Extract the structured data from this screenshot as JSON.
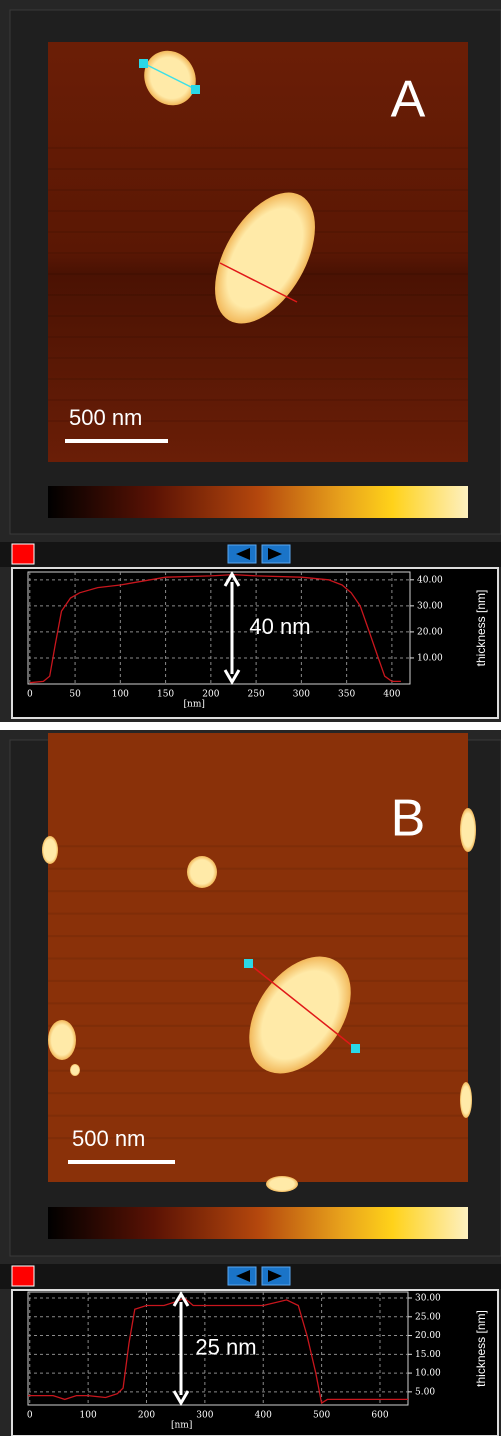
{
  "panels": [
    {
      "label": "A",
      "scale_bar": "500 nm"
    },
    {
      "label": "B",
      "scale_bar": "500 nm"
    }
  ],
  "chart_data": [
    {
      "type": "line",
      "color": "#c8161d",
      "xlabel": "[nm]",
      "ylabel": "thickness [nm]",
      "annotation": "40 nm",
      "x": [
        0,
        15,
        22,
        28,
        35,
        45,
        55,
        75,
        100,
        150,
        200,
        225,
        250,
        300,
        330,
        345,
        355,
        365,
        375,
        385,
        392,
        400,
        410
      ],
      "values": [
        0.5,
        1,
        3,
        15,
        28,
        33,
        35,
        37,
        38,
        41,
        41.5,
        42,
        41.5,
        41,
        40,
        38,
        35,
        30,
        20,
        10,
        3,
        1,
        1
      ],
      "xlim": [
        -2,
        420
      ],
      "ylim": [
        0,
        43
      ],
      "xticks": [
        0,
        50,
        100,
        150,
        200,
        250,
        300,
        350,
        400
      ],
      "yticks": [
        {
          "value": 10,
          "label": "10.00"
        },
        {
          "value": 20,
          "label": "20.00"
        },
        {
          "value": 30,
          "label": "30.00"
        },
        {
          "value": 40,
          "label": "40.00"
        }
      ],
      "grid": true
    },
    {
      "type": "line",
      "color": "#c8161d",
      "xlabel": "[nm]",
      "ylabel": "thickness [nm]",
      "annotation": "25 nm",
      "x": [
        -3,
        20,
        40,
        60,
        80,
        100,
        130,
        150,
        160,
        170,
        180,
        200,
        230,
        250,
        265,
        280,
        300,
        350,
        400,
        440,
        460,
        475,
        490,
        500,
        510,
        530,
        560,
        600,
        648
      ],
      "values": [
        4,
        4,
        4,
        3,
        4,
        4,
        3.5,
        4.5,
        6,
        18,
        27,
        28,
        28,
        29,
        30,
        28,
        28,
        28,
        28,
        29.5,
        28,
        20,
        10,
        2,
        3,
        3,
        3,
        3,
        3
      ],
      "xlim": [
        -3,
        648
      ],
      "ylim": [
        1.5,
        31.6
      ],
      "xticks": [
        0,
        100,
        200,
        300,
        400,
        500,
        600
      ],
      "yticks": [
        {
          "value": 5,
          "label": "5.00"
        },
        {
          "value": 10,
          "label": "10.00"
        },
        {
          "value": 15,
          "label": "15.00"
        },
        {
          "value": 20,
          "label": "20.00"
        },
        {
          "value": 25,
          "label": "25.00"
        },
        {
          "value": 30,
          "label": "30.00"
        }
      ],
      "grid": true
    }
  ]
}
